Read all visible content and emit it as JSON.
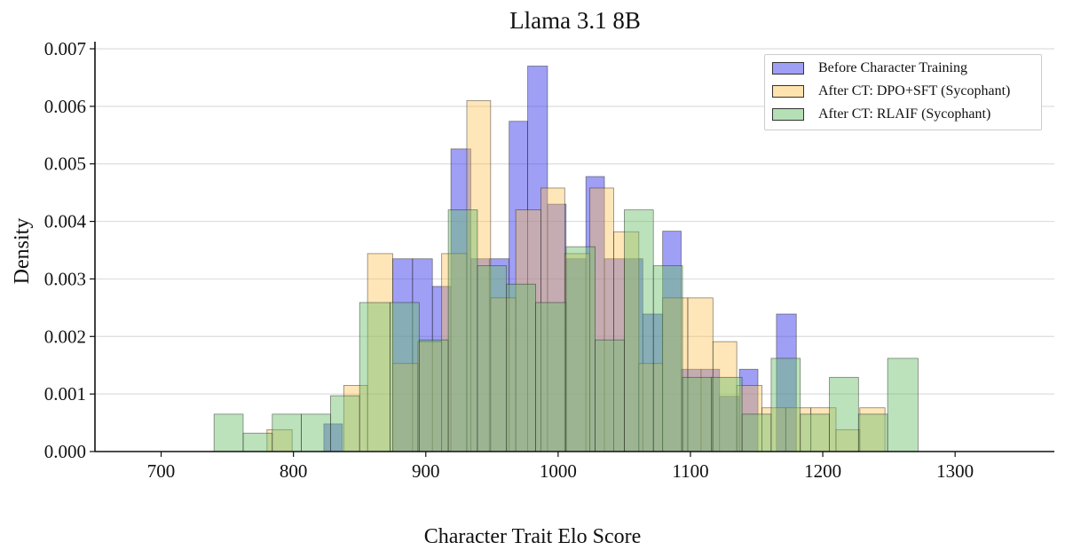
{
  "chart_data": {
    "type": "histogram",
    "title": "Llama 3.1 8B",
    "xlabel": "Character Trait Elo Score",
    "ylabel": "Density",
    "xlim": [
      650,
      1375
    ],
    "ylim": [
      0,
      0.007
    ],
    "xticks": [
      700,
      800,
      900,
      1000,
      1100,
      1200,
      1300
    ],
    "xtick_labels": [
      "700",
      "800",
      "900",
      "1000",
      "1100",
      "1200",
      "1300"
    ],
    "yticks": [
      0,
      0.001,
      0.002,
      0.003,
      0.004,
      0.005,
      0.006,
      0.007
    ],
    "ytick_labels": [
      "0.000",
      "0.001",
      "0.002",
      "0.003",
      "0.004",
      "0.005",
      "0.006",
      "0.007"
    ],
    "grid": "horizontal",
    "legend_position": "top-right",
    "series": [
      {
        "name": "Before Character Training",
        "color": "#4040ee",
        "bins": [
          [
            823,
            837,
            0.00048
          ],
          [
            875,
            890,
            0.00335
          ],
          [
            890,
            905,
            0.00335
          ],
          [
            905,
            919,
            0.00287
          ],
          [
            919,
            934,
            0.00526
          ],
          [
            934,
            948,
            0.00335
          ],
          [
            948,
            963,
            0.00335
          ],
          [
            963,
            977,
            0.00574
          ],
          [
            977,
            992,
            0.0067
          ],
          [
            992,
            1006,
            0.0043
          ],
          [
            1006,
            1021,
            0.00335
          ],
          [
            1021,
            1035,
            0.00478
          ],
          [
            1035,
            1050,
            0.00335
          ],
          [
            1050,
            1064,
            0.00335
          ],
          [
            1064,
            1079,
            0.00239
          ],
          [
            1079,
            1093,
            0.00383
          ],
          [
            1093,
            1108,
            0.00143
          ],
          [
            1108,
            1122,
            0.00143
          ],
          [
            1122,
            1137,
            0.00096
          ],
          [
            1137,
            1151,
            0.00143
          ],
          [
            1165,
            1180,
            0.00239
          ]
        ]
      },
      {
        "name": "After CT: DPO+SFT (Sycophant)",
        "color": "#ffc04d",
        "bins": [
          [
            780,
            799,
            0.00038
          ],
          [
            838,
            856,
            0.00115
          ],
          [
            856,
            875,
            0.00344
          ],
          [
            875,
            894,
            0.00153
          ],
          [
            894,
            912,
            0.00191
          ],
          [
            912,
            931,
            0.00344
          ],
          [
            931,
            949,
            0.0061
          ],
          [
            949,
            968,
            0.00267
          ],
          [
            968,
            987,
            0.0042
          ],
          [
            987,
            1005,
            0.00458
          ],
          [
            1005,
            1024,
            0.00344
          ],
          [
            1024,
            1042,
            0.00458
          ],
          [
            1042,
            1061,
            0.00382
          ],
          [
            1061,
            1079,
            0.00153
          ],
          [
            1079,
            1098,
            0.00267
          ],
          [
            1098,
            1117,
            0.00267
          ],
          [
            1117,
            1135,
            0.00191
          ],
          [
            1135,
            1154,
            0.00115
          ],
          [
            1154,
            1172,
            0.00076
          ],
          [
            1172,
            1191,
            0.00076
          ],
          [
            1191,
            1210,
            0.00076
          ],
          [
            1210,
            1228,
            0.00038
          ],
          [
            1228,
            1247,
            0.00076
          ]
        ]
      },
      {
        "name": "After CT: RLAIF (Sycophant)",
        "color": "#6bbf6b",
        "bins": [
          [
            740,
            762,
            0.00065
          ],
          [
            762,
            784,
            0.00032
          ],
          [
            784,
            806,
            0.00065
          ],
          [
            806,
            828,
            0.00065
          ],
          [
            828,
            850,
            0.00097
          ],
          [
            850,
            873,
            0.00259
          ],
          [
            873,
            895,
            0.00259
          ],
          [
            895,
            917,
            0.00194
          ],
          [
            917,
            939,
            0.0042
          ],
          [
            939,
            961,
            0.00323
          ],
          [
            961,
            983,
            0.00291
          ],
          [
            983,
            1006,
            0.00259
          ],
          [
            1006,
            1028,
            0.00356
          ],
          [
            1028,
            1050,
            0.00194
          ],
          [
            1050,
            1072,
            0.0042
          ],
          [
            1072,
            1094,
            0.00323
          ],
          [
            1094,
            1116,
            0.00129
          ],
          [
            1116,
            1139,
            0.00129
          ],
          [
            1139,
            1161,
            0.00065
          ],
          [
            1161,
            1183,
            0.00162
          ],
          [
            1183,
            1205,
            0.00065
          ],
          [
            1205,
            1227,
            0.00129
          ],
          [
            1227,
            1249,
            0.00065
          ],
          [
            1249,
            1272,
            0.00162
          ]
        ]
      }
    ]
  }
}
